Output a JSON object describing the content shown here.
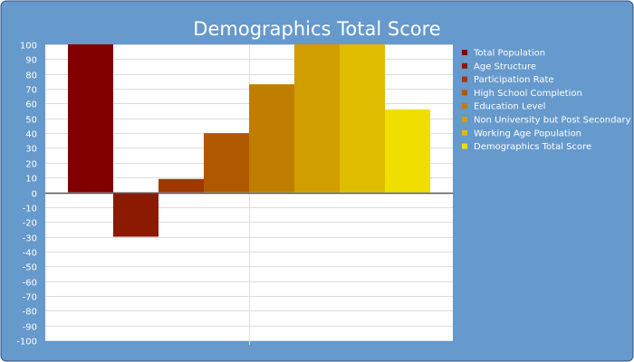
{
  "chart_data": {
    "type": "bar",
    "title": "Demographics Total Score",
    "xlabel": "",
    "ylabel": "",
    "ylim": [
      -100,
      100
    ],
    "ytick_step": 10,
    "grid": true,
    "legend_position": "right",
    "series": [
      {
        "name": "Total Population",
        "value": 100,
        "color": "#800000"
      },
      {
        "name": "Age Structure",
        "value": -30,
        "color": "#8B1A00"
      },
      {
        "name": "Participation Rate",
        "value": 9,
        "color": "#A03800"
      },
      {
        "name": "High School Completion",
        "value": 40,
        "color": "#B05800"
      },
      {
        "name": "Education Level",
        "value": 73,
        "color": "#C07E00"
      },
      {
        "name": "Non University but Post Secondary",
        "value": 100,
        "color": "#D09E00"
      },
      {
        "name": "Working Age Population",
        "value": 100,
        "color": "#E0BC00"
      },
      {
        "name": "Demographics Total Score",
        "value": 56,
        "color": "#F0DE00"
      }
    ]
  },
  "colors": {
    "frame": "#6699CC",
    "frame_border": "#2E4E7E",
    "plot_background": "#FFFFFF",
    "gridline": "#DDDDDD",
    "zero_line": "#555555"
  }
}
